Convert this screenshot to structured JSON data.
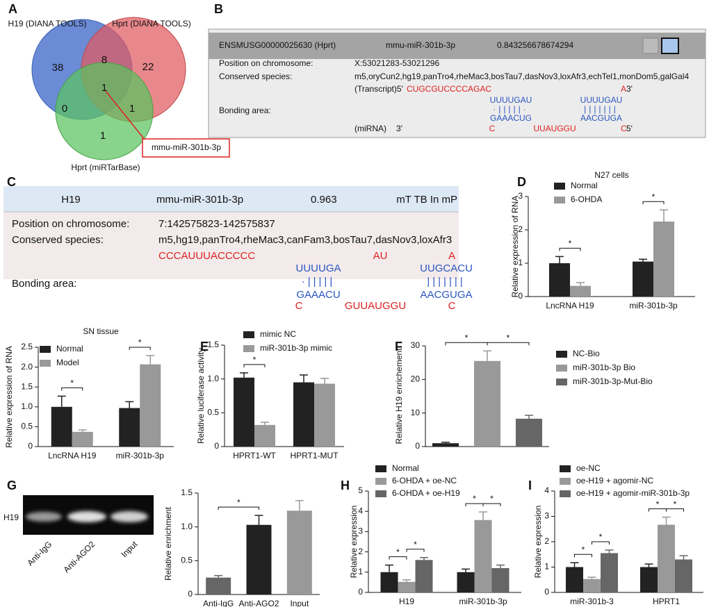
{
  "panel_labels": [
    "A",
    "B",
    "C",
    "D",
    "E",
    "F",
    "G",
    "H",
    "I"
  ],
  "venn": {
    "sets": [
      "H19 (DIANA TOOLS)",
      "Hprt (DIANA TOOLS)",
      "Hprt (miRTarBase)"
    ],
    "regions": [
      38,
      8,
      22,
      1,
      0,
      1,
      1
    ],
    "callout": "mmu-miR-301b-3p"
  },
  "panel_b": {
    "header": [
      "ENSMUSG00000025630 (Hprt)",
      "mmu-miR-301b-3p",
      "0.843256678674294"
    ],
    "rows": [
      [
        "Position on chromosome:",
        "X:53021283-53021296"
      ],
      [
        "Conserved species:",
        "m5,oryCun2,hg19,panTro4,rheMac3,bosTau7,dasNov3,loxAfr3,echTel1,monDom5,galGal4"
      ]
    ],
    "binding_label": "Bonding area:",
    "transcript": [
      "(Transcript)5'",
      "CUGCGUCCCCAGAC",
      "A",
      "3'"
    ],
    "duplex_top": [
      "UUUUGAU",
      "UUUUGAU"
    ],
    "duplex_match": [
      "·|||||·",
      "|||||||"
    ],
    "duplex_bottom": [
      "GAAACUG",
      "AACGUGA"
    ],
    "mirna": [
      "(miRNA)",
      "3'",
      "C",
      "UUAUGGU",
      "C",
      "5'"
    ]
  },
  "panel_c": {
    "header": [
      "H19",
      "mmu-miR-301b-3p",
      "0.963",
      "mT TB In mP"
    ],
    "rows": [
      [
        "Position on chromosome:",
        "7:142575823-142575837"
      ],
      [
        "Conserved species:",
        "m5,hg19,panTro4,rheMac3,canFam3,bosTau7,dasNov3,loxAfr3"
      ]
    ],
    "binding_label": "Bonding area:",
    "transcript": [
      "CCCAUUUACCCCC",
      "AU",
      "A"
    ],
    "duplex_top": [
      "UUUUGA",
      "UUGCACU"
    ],
    "duplex_match": [
      "·|||||",
      "|||||||"
    ],
    "duplex_bottom": [
      "GAAACU",
      "AACGUGA"
    ],
    "mirna": [
      "C",
      "GUUAUGGU",
      "C"
    ]
  },
  "gel": {
    "row_label": "H19",
    "lanes": [
      "Anti-IgG",
      "Anti-AGO2",
      "Input"
    ]
  },
  "chart_data": [
    {
      "type": "bar",
      "title": "N27 cells",
      "y_label": "Relative expression of RNA",
      "categories": [
        "LncRNA H19",
        "miR-301b-3p"
      ],
      "series": [
        {
          "name": "Normal",
          "color": "#222222",
          "values": [
            1.0,
            1.05
          ],
          "errors": [
            0.2,
            0.07
          ]
        },
        {
          "name": "6-OHDA",
          "color": "#999999",
          "values": [
            0.32,
            2.25
          ],
          "errors": [
            0.1,
            0.35
          ]
        }
      ],
      "ylim": [
        0,
        3
      ],
      "yticks": [
        0,
        1,
        2,
        3
      ],
      "comparisons": [
        {
          "bars": [
            [
              0,
              0
            ],
            [
              0,
              1
            ]
          ],
          "label": "*"
        },
        {
          "bars": [
            [
              1,
              0
            ],
            [
              1,
              1
            ]
          ],
          "label": "*"
        }
      ]
    },
    {
      "type": "bar",
      "title": "SN tissue",
      "y_label": "Relative expression of RNA",
      "categories": [
        "LncRNA H19",
        "miR-301b-3p"
      ],
      "series": [
        {
          "name": "Normal",
          "color": "#222222",
          "values": [
            1.0,
            0.97
          ],
          "errors": [
            0.27,
            0.16
          ]
        },
        {
          "name": "Model",
          "color": "#999999",
          "values": [
            0.37,
            2.07
          ],
          "errors": [
            0.05,
            0.22
          ]
        }
      ],
      "ylim": [
        0,
        2.5
      ],
      "yticks": [
        0,
        0.5,
        {
          "value": 1,
          "label": "1.0"
        },
        1.5,
        {
          "value": 2,
          "label": "2.0"
        },
        2.5
      ],
      "comparisons": [
        {
          "bars": [
            [
              0,
              0
            ],
            [
              0,
              1
            ]
          ],
          "label": "*"
        },
        {
          "bars": [
            [
              1,
              0
            ],
            [
              1,
              1
            ]
          ],
          "label": "*"
        }
      ]
    },
    {
      "type": "bar",
      "y_label": "Relative luciferase activity",
      "categories": [
        "HPRT1-WT",
        "HPRT1-MUT"
      ],
      "series": [
        {
          "name": "mimic NC",
          "color": "#222222",
          "values": [
            1.02,
            0.95
          ],
          "errors": [
            0.07,
            0.11
          ]
        },
        {
          "name": "miR-301b-3p mimic",
          "color": "#999999",
          "values": [
            0.32,
            0.93
          ],
          "errors": [
            0.04,
            0.08
          ]
        }
      ],
      "ylim": [
        0,
        1.5
      ],
      "yticks": [
        0,
        0.5,
        {
          "value": 1,
          "label": "1.0"
        },
        1.5
      ],
      "comparisons": [
        {
          "bars": [
            [
              0,
              0
            ],
            [
              0,
              1
            ]
          ],
          "label": "*"
        }
      ]
    },
    {
      "type": "bar",
      "y_label": "Relative H19 enrichement",
      "categories": [
        null
      ],
      "series": [
        {
          "name": "NC-Bio",
          "color": "#222222",
          "values": [
            1.0
          ],
          "errors": [
            0.3
          ]
        },
        {
          "name": "miR-301b-3p Bio",
          "color": "#999999",
          "values": [
            25.5
          ],
          "errors": [
            3.0
          ]
        },
        {
          "name": "miR-301b-3p-Mut-Bio",
          "color": "#666666",
          "values": [
            8.3
          ],
          "errors": [
            1.0
          ]
        }
      ],
      "ylim": [
        0,
        30
      ],
      "yticks": [
        0,
        10,
        20,
        30
      ],
      "comparisons": [
        {
          "bars": [
            [
              0,
              0
            ],
            [
              0,
              1
            ]
          ],
          "label": "*"
        },
        {
          "bars": [
            [
              0,
              1
            ],
            [
              0,
              2
            ]
          ],
          "label": "*"
        }
      ]
    },
    {
      "type": "bar",
      "y_label": "Relative enrichment",
      "categories": [
        "Anti-IgG",
        "Anti-AGO2",
        "Input"
      ],
      "values": [
        0.25,
        1.03,
        1.24
      ],
      "errors": [
        0.03,
        0.14,
        0.15
      ],
      "colors": [
        "#666666",
        "#222222",
        "#999999"
      ],
      "ylim": [
        0,
        1.5
      ],
      "yticks": [
        0,
        0.5,
        {
          "value": 1,
          "label": "1.0"
        },
        1.5
      ],
      "comparisons": [
        {
          "bars": [
            [
              0,
              0
            ],
            [
              1,
              0
            ]
          ],
          "label": "*"
        }
      ]
    },
    {
      "type": "bar",
      "y_label": "Relative expression",
      "categories": [
        "H19",
        "miR-301b-3p"
      ],
      "series": [
        {
          "name": "Normal",
          "color": "#222222",
          "values": [
            1.0,
            1.0
          ],
          "errors": [
            0.35,
            0.15
          ]
        },
        {
          "name": "6-OHDA + oe-NC",
          "color": "#999999",
          "values": [
            0.52,
            3.57
          ],
          "errors": [
            0.1,
            0.4
          ]
        },
        {
          "name": "6-OHDA + oe-H19",
          "color": "#666666",
          "values": [
            1.6,
            1.2
          ],
          "errors": [
            0.12,
            0.15
          ]
        }
      ],
      "ylim": [
        0,
        5
      ],
      "yticks": [
        0,
        1,
        2,
        3,
        4,
        5
      ],
      "comparisons": [
        {
          "bars": [
            [
              0,
              0
            ],
            [
              0,
              1
            ]
          ],
          "label": "*"
        },
        {
          "bars": [
            [
              0,
              1
            ],
            [
              0,
              2
            ]
          ],
          "label": "*"
        },
        {
          "bars": [
            [
              1,
              0
            ],
            [
              1,
              1
            ]
          ],
          "label": "*"
        },
        {
          "bars": [
            [
              1,
              1
            ],
            [
              1,
              2
            ]
          ],
          "label": "*"
        }
      ]
    },
    {
      "type": "bar",
      "y_label": "Relative expression",
      "categories": [
        "miR-301b-3",
        "HPRT1"
      ],
      "series": [
        {
          "name": "oe-NC",
          "color": "#222222",
          "values": [
            1.0,
            1.0
          ],
          "errors": [
            0.17,
            0.12
          ]
        },
        {
          "name": "oe-H19 + agomir-NC",
          "color": "#999999",
          "values": [
            0.53,
            2.67
          ],
          "errors": [
            0.07,
            0.3
          ]
        },
        {
          "name": "oe-H19 + agomir-miR-301b-3p",
          "color": "#666666",
          "values": [
            1.55,
            1.3
          ],
          "errors": [
            0.12,
            0.15
          ]
        }
      ],
      "ylim": [
        0,
        4
      ],
      "yticks": [
        0,
        1,
        2,
        3,
        4
      ],
      "comparisons": [
        {
          "bars": [
            [
              0,
              0
            ],
            [
              0,
              1
            ]
          ],
          "label": "*"
        },
        {
          "bars": [
            [
              0,
              1
            ],
            [
              0,
              2
            ]
          ],
          "label": "*"
        },
        {
          "bars": [
            [
              1,
              0
            ],
            [
              1,
              1
            ]
          ],
          "label": "*"
        },
        {
          "bars": [
            [
              1,
              1
            ],
            [
              1,
              2
            ]
          ],
          "label": "*"
        }
      ]
    }
  ]
}
